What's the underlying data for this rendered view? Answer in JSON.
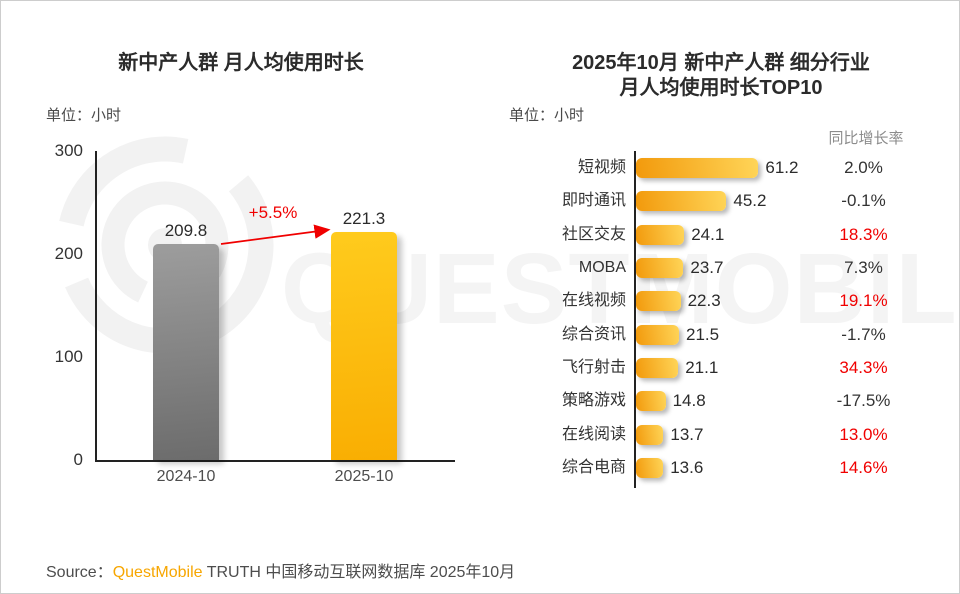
{
  "page": {
    "watermark_text": "QUESTMOBILE",
    "source": {
      "prefix": "Source：",
      "brand": "QuestMobile",
      "suffix": " TRUTH 中国移动互联网数据库 2025年10月"
    }
  },
  "colors": {
    "accent_gold": "#FBB903",
    "bar_gray": "#808080",
    "highlight_red": "#F00000",
    "text_dark": "#333333",
    "text_gray": "#8C8C8C",
    "brand_orange": "#F7A600",
    "watermark_gray": "#F4F4F4"
  },
  "chart_data": [
    {
      "type": "bar",
      "title": "新中产人群 月人均使用时长",
      "unit_label": "单位：小时",
      "categories": [
        "2024-10",
        "2025-10"
      ],
      "values": [
        209.8,
        221.3
      ],
      "value_labels": [
        "209.8",
        "221.3"
      ],
      "bar_colors": [
        "#808080",
        "#FBB903"
      ],
      "growth_annotation": "+5.5%",
      "yticks": [
        0,
        100,
        200,
        300
      ],
      "ylim": [
        0,
        300
      ],
      "grid": false
    },
    {
      "type": "bar",
      "orientation": "horizontal",
      "title_line1": "2025年10月 新中产人群 细分行业",
      "title_line2": "月人均使用时长TOP10",
      "unit_label": "单位：小时",
      "growth_header": "同比增长率",
      "categories": [
        "短视频",
        "即时通讯",
        "社区交友",
        "MOBA",
        "在线视频",
        "综合资讯",
        "飞行射击",
        "策略游戏",
        "在线阅读",
        "综合电商"
      ],
      "values": [
        61.2,
        45.2,
        24.1,
        23.7,
        22.3,
        21.5,
        21.1,
        14.8,
        13.7,
        13.6
      ],
      "growth_labels": [
        "2.0%",
        "-0.1%",
        "18.3%",
        "7.3%",
        "19.1%",
        "-1.7%",
        "34.3%",
        "-17.5%",
        "13.0%",
        "14.6%"
      ],
      "growth_highlight_red": [
        false,
        false,
        true,
        false,
        true,
        false,
        true,
        false,
        true,
        true
      ],
      "xlim": [
        0,
        65
      ],
      "grid": false
    }
  ]
}
